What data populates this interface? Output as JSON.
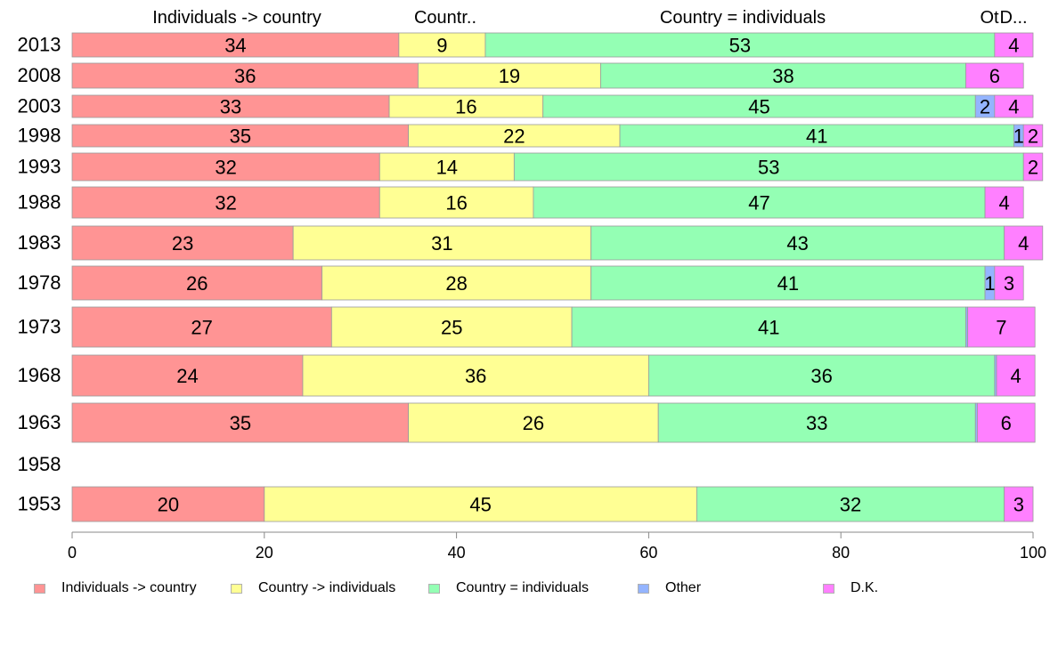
{
  "chart_data": {
    "type": "bar",
    "orientation": "horizontal",
    "stacked": true,
    "title": "",
    "xlabel": "",
    "ylabel": "",
    "xlim": [
      0,
      100
    ],
    "x_ticks": [
      0,
      20,
      40,
      60,
      80,
      100
    ],
    "grid": false,
    "legend_position": "bottom",
    "categories": [
      "2013",
      "2008",
      "2003",
      "1998",
      "1993",
      "1988",
      "1983",
      "1978",
      "1973",
      "1968",
      "1963",
      "1958",
      "1953"
    ],
    "series": [
      {
        "name": "Individuals -> country",
        "color": "#ff9494",
        "values": [
          34,
          36,
          33,
          35,
          32,
          32,
          23,
          26,
          27,
          24,
          35,
          null,
          20
        ]
      },
      {
        "name": "Country -> individuals",
        "color": "#ffff94",
        "values": [
          9,
          19,
          16,
          22,
          14,
          16,
          31,
          28,
          25,
          36,
          26,
          null,
          45
        ]
      },
      {
        "name": "Country = individuals",
        "color": "#94ffb4",
        "values": [
          53,
          38,
          45,
          41,
          53,
          47,
          43,
          41,
          41,
          36,
          33,
          null,
          32
        ]
      },
      {
        "name": "Other",
        "color": "#94b4ff",
        "values": [
          0,
          0,
          2,
          1,
          0,
          0,
          0,
          1,
          0.2,
          0.2,
          0.2,
          null,
          0
        ]
      },
      {
        "name": "D.K.",
        "color": "#ff80ff",
        "values": [
          4,
          6,
          4,
          2,
          2,
          4,
          4,
          3,
          7,
          4,
          6,
          null,
          3
        ]
      }
    ],
    "top_labels": [
      "Individuals -> country",
      "Countr..",
      "Country = individuals",
      "Ot",
      "D..."
    ]
  }
}
